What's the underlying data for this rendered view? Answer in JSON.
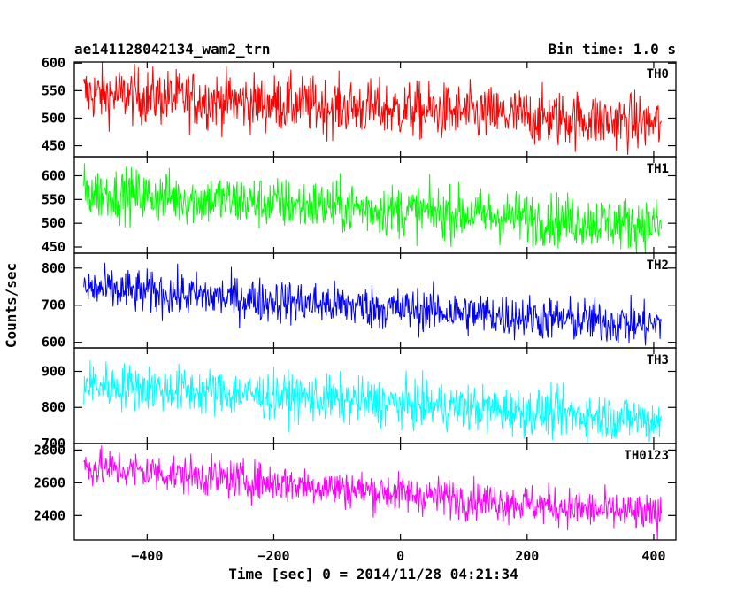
{
  "header": {
    "left_title": "ae141128042134_wam2_trn",
    "right_title": "Bin time: 1.0 s"
  },
  "chart_data": {
    "type": "line",
    "xlabel": "Time [sec] 0 = 2014/11/28 04:21:34",
    "ylabel": "Counts/sec",
    "xlim": [
      -515,
      435
    ],
    "x_ticks": [
      -400,
      -200,
      0,
      200,
      400
    ],
    "x_range": [
      -500,
      412
    ],
    "bin_time_s": 1.0,
    "panels": [
      {
        "name": "TH0",
        "color": "#ff0000",
        "ylim": [
          430,
          602
        ],
        "y_ticks": [
          450,
          500,
          550,
          600
        ],
        "start_level": 545,
        "end_level": 490,
        "noise": 26
      },
      {
        "name": "TH1",
        "color": "#00ff00",
        "ylim": [
          437,
          640
        ],
        "y_ticks": [
          450,
          500,
          550,
          600
        ],
        "start_level": 565,
        "end_level": 495,
        "noise": 28
      },
      {
        "name": "TH2",
        "color": "#0000ff",
        "ylim": [
          585,
          840
        ],
        "y_ticks": [
          600,
          700,
          800
        ],
        "start_level": 745,
        "end_level": 645,
        "noise": 30
      },
      {
        "name": "TH3",
        "color": "#00ffff",
        "ylim": [
          700,
          965
        ],
        "y_ticks": [
          700,
          800,
          900
        ],
        "start_level": 865,
        "end_level": 765,
        "noise": 33
      },
      {
        "name": "TH0123",
        "color": "#ff00ff",
        "ylim": [
          2250,
          2840
        ],
        "y_ticks": [
          2400,
          2600,
          2800
        ],
        "start_level": 2700,
        "end_level": 2400,
        "noise": 60
      }
    ]
  }
}
